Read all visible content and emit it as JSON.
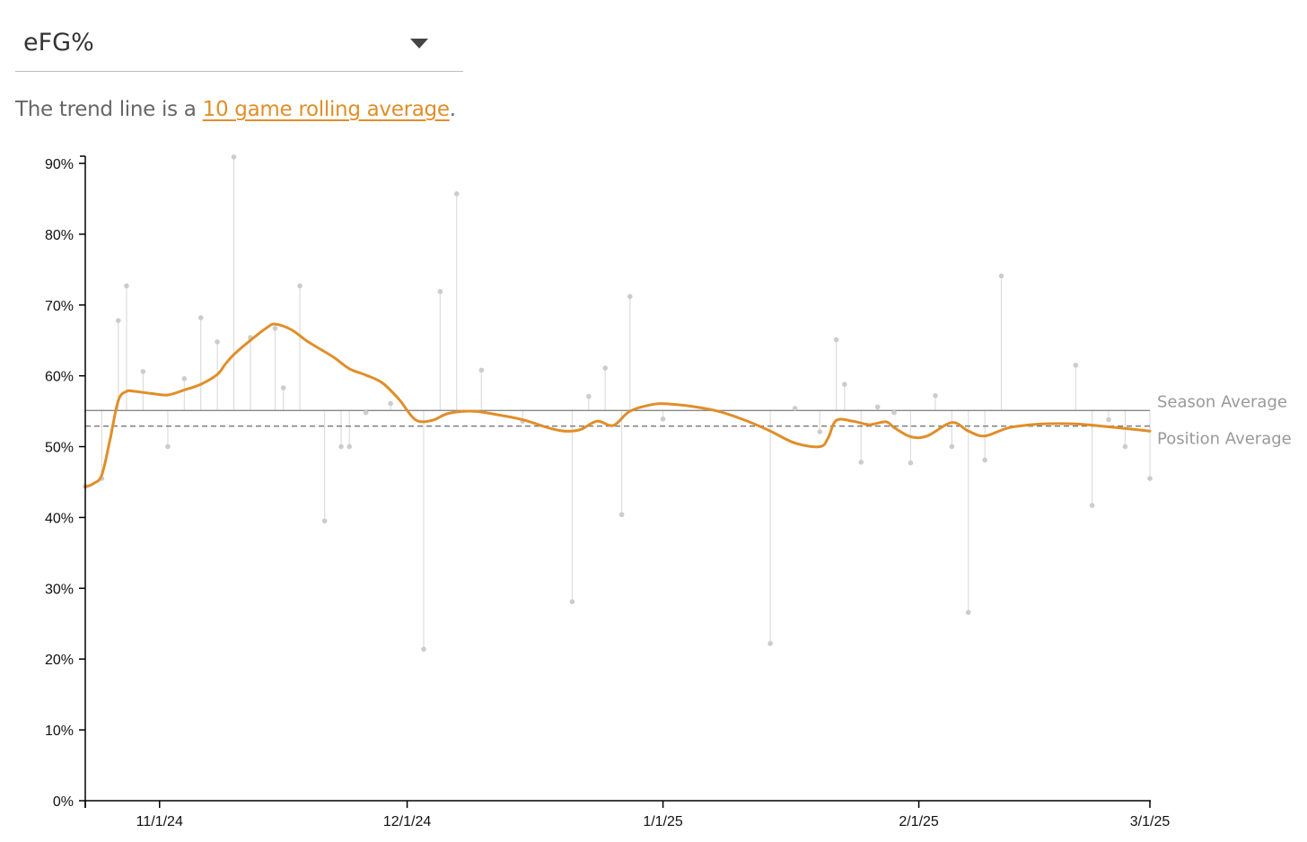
{
  "metric_dropdown": {
    "selected": "eFG%",
    "icon": "caret-down-icon"
  },
  "caption": {
    "prefix": "The trend line is a ",
    "link": "10 game rolling average",
    "suffix": "."
  },
  "colors": {
    "trend": "#e08e2a",
    "points": "#cccccc",
    "stems": "#dddddd",
    "season": "#888888",
    "position": "#777777",
    "link": "#e08e2a"
  },
  "chart_data": {
    "type": "line",
    "ylim": [
      0,
      0.9
    ],
    "xlim": [
      "2024-10-23",
      "2025-03-01"
    ],
    "y_ticks": [
      "0%",
      "10%",
      "20%",
      "30%",
      "40%",
      "50%",
      "60%",
      "70%",
      "80%",
      "90%"
    ],
    "x_ticks": [
      {
        "date": "2024-11-01",
        "label": "11/1/24"
      },
      {
        "date": "2024-12-01",
        "label": "12/1/24"
      },
      {
        "date": "2025-01-01",
        "label": "1/1/25"
      },
      {
        "date": "2025-02-01",
        "label": "2/1/25"
      },
      {
        "date": "2025-03-01",
        "label": "3/1/25"
      }
    ],
    "reference_lines": [
      {
        "name": "Season Average",
        "value": 0.551,
        "style": "solid"
      },
      {
        "name": "Position Average",
        "value": 0.529,
        "style": "dashed"
      }
    ],
    "games": [
      [
        "2024-10-23",
        0.444
      ],
      [
        "2024-10-25",
        0.455
      ],
      [
        "2024-10-27",
        0.678
      ],
      [
        "2024-10-28",
        0.727
      ],
      [
        "2024-10-30",
        0.606
      ],
      [
        "2024-11-02",
        0.5
      ],
      [
        "2024-11-04",
        0.596
      ],
      [
        "2024-11-06",
        0.682
      ],
      [
        "2024-11-08",
        0.648
      ],
      [
        "2024-11-10",
        0.909
      ],
      [
        "2024-11-12",
        0.654
      ],
      [
        "2024-11-15",
        0.667
      ],
      [
        "2024-11-16",
        0.583
      ],
      [
        "2024-11-18",
        0.727
      ],
      [
        "2024-11-21",
        0.395
      ],
      [
        "2024-11-23",
        0.5
      ],
      [
        "2024-11-24",
        0.5
      ],
      [
        "2024-11-26",
        0.548
      ],
      [
        "2024-11-29",
        0.561
      ],
      [
        "2024-12-03",
        0.214
      ],
      [
        "2024-12-05",
        0.719
      ],
      [
        "2024-12-07",
        0.857
      ],
      [
        "2024-12-10",
        0.608
      ],
      [
        "2024-12-15",
        0.536
      ],
      [
        "2024-12-21",
        0.281
      ],
      [
        "2024-12-23",
        0.571
      ],
      [
        "2024-12-25",
        0.611
      ],
      [
        "2024-12-27",
        0.404
      ],
      [
        "2024-12-28",
        0.712
      ],
      [
        "2025-01-01",
        0.539
      ],
      [
        "2025-01-14",
        0.222
      ],
      [
        "2025-01-17",
        0.554
      ],
      [
        "2025-01-20",
        0.521
      ],
      [
        "2025-01-22",
        0.651
      ],
      [
        "2025-01-23",
        0.588
      ],
      [
        "2025-01-25",
        0.478
      ],
      [
        "2025-01-27",
        0.556
      ],
      [
        "2025-01-29",
        0.548
      ],
      [
        "2025-01-31",
        0.477
      ],
      [
        "2025-02-03",
        0.572
      ],
      [
        "2025-02-05",
        0.5
      ],
      [
        "2025-02-07",
        0.266
      ],
      [
        "2025-02-09",
        0.481
      ],
      [
        "2025-02-11",
        0.741
      ],
      [
        "2025-02-20",
        0.615
      ],
      [
        "2025-02-22",
        0.417
      ],
      [
        "2025-02-24",
        0.538
      ],
      [
        "2025-02-26",
        0.5
      ],
      [
        "2025-03-01",
        0.455
      ]
    ],
    "trend": [
      [
        "2024-10-23",
        0.443
      ],
      [
        "2024-10-24",
        0.448
      ],
      [
        "2024-10-25",
        0.46
      ],
      [
        "2024-10-26",
        0.51
      ],
      [
        "2024-10-27",
        0.565
      ],
      [
        "2024-10-28",
        0.578
      ],
      [
        "2024-10-29",
        0.578
      ],
      [
        "2024-10-31",
        0.575
      ],
      [
        "2024-11-02",
        0.573
      ],
      [
        "2024-11-04",
        0.58
      ],
      [
        "2024-11-06",
        0.588
      ],
      [
        "2024-11-08",
        0.602
      ],
      [
        "2024-11-09",
        0.617
      ],
      [
        "2024-11-10",
        0.63
      ],
      [
        "2024-11-12",
        0.65
      ],
      [
        "2024-11-14",
        0.668
      ],
      [
        "2024-11-15",
        0.673
      ],
      [
        "2024-11-17",
        0.665
      ],
      [
        "2024-11-19",
        0.648
      ],
      [
        "2024-11-22",
        0.627
      ],
      [
        "2024-11-24",
        0.61
      ],
      [
        "2024-11-26",
        0.601
      ],
      [
        "2024-11-28",
        0.59
      ],
      [
        "2024-11-30",
        0.567
      ],
      [
        "2024-12-02",
        0.538
      ],
      [
        "2024-12-04",
        0.537
      ],
      [
        "2024-12-06",
        0.547
      ],
      [
        "2024-12-09",
        0.55
      ],
      [
        "2024-12-12",
        0.545
      ],
      [
        "2024-12-15",
        0.538
      ],
      [
        "2024-12-18",
        0.527
      ],
      [
        "2024-12-20",
        0.522
      ],
      [
        "2024-12-22",
        0.524
      ],
      [
        "2024-12-24",
        0.536
      ],
      [
        "2024-12-26",
        0.53
      ],
      [
        "2024-12-28",
        0.55
      ],
      [
        "2024-12-31",
        0.56
      ],
      [
        "2025-01-02",
        0.56
      ],
      [
        "2025-01-05",
        0.556
      ],
      [
        "2025-01-08",
        0.549
      ],
      [
        "2025-01-11",
        0.537
      ],
      [
        "2025-01-14",
        0.522
      ],
      [
        "2025-01-17",
        0.505
      ],
      [
        "2025-01-20",
        0.5
      ],
      [
        "2025-01-21",
        0.512
      ],
      [
        "2025-01-22",
        0.537
      ],
      [
        "2025-01-24",
        0.536
      ],
      [
        "2025-01-26",
        0.531
      ],
      [
        "2025-01-28",
        0.535
      ],
      [
        "2025-01-29",
        0.527
      ],
      [
        "2025-01-31",
        0.514
      ],
      [
        "2025-02-02",
        0.515
      ],
      [
        "2025-02-05",
        0.534
      ],
      [
        "2025-02-07",
        0.522
      ],
      [
        "2025-02-09",
        0.515
      ],
      [
        "2025-02-12",
        0.527
      ],
      [
        "2025-02-16",
        0.532
      ],
      [
        "2025-02-20",
        0.532
      ],
      [
        "2025-02-24",
        0.528
      ],
      [
        "2025-03-01",
        0.522
      ]
    ]
  }
}
